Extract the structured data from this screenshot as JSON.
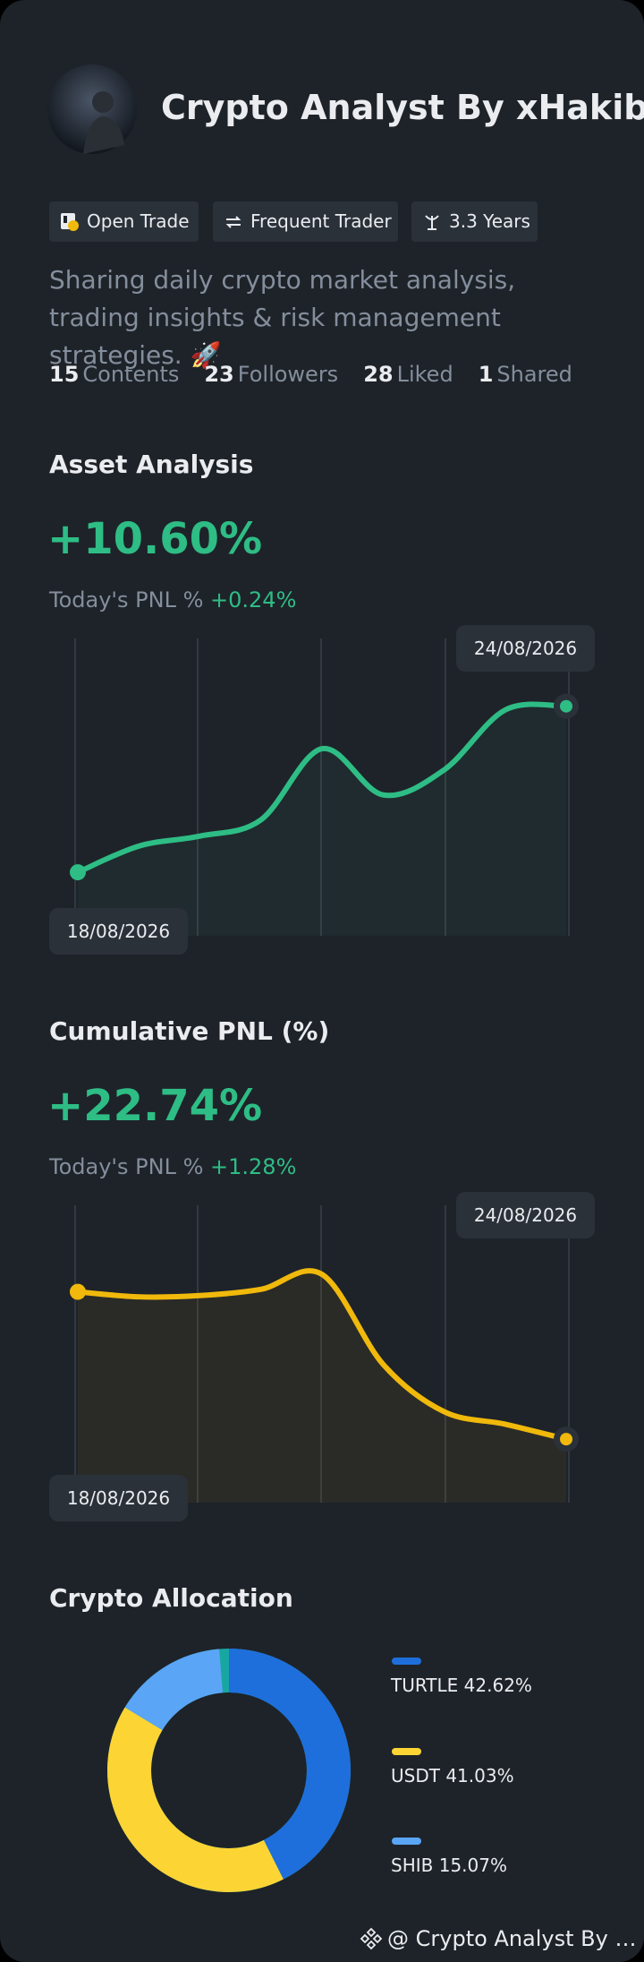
{
  "profile": {
    "name": "Crypto Analyst By xHakib",
    "badges": [
      "Open Trade",
      "Frequent Trader",
      "3.3 Years"
    ],
    "bio": "Sharing daily crypto market analysis, trading insights & risk management strategies. 🚀",
    "stats": [
      {
        "value": "15",
        "label": "Contents"
      },
      {
        "value": "23",
        "label": "Followers"
      },
      {
        "value": "28",
        "label": "Liked"
      },
      {
        "value": "1",
        "label": "Shared"
      }
    ]
  },
  "chart_data": [
    {
      "type": "line",
      "title": "Asset Analysis",
      "headline": "+10.60%",
      "today_label": "Today's PNL %",
      "today_value": "+0.24%",
      "start_label": "18/08/2026",
      "end_label": "24/08/2026",
      "color": "#2ebd85",
      "values": [
        0,
        2.1,
        2.9,
        4.2,
        9.9,
        6.2,
        8.2,
        13.0,
        13.3
      ],
      "ylim": [
        -2,
        15
      ]
    },
    {
      "type": "line",
      "title": "Cumulative PNL (%)",
      "headline": "+22.74%",
      "today_label": "Today's PNL %",
      "today_value": "+1.28%",
      "start_label": "18/08/2026",
      "end_label": "24/08/2026",
      "color": "#f0b90b",
      "values": [
        11.8,
        11.4,
        11.5,
        12.0,
        13.2,
        6.0,
        2.2,
        1.2,
        0
      ],
      "ylim": [
        -2,
        15
      ]
    },
    {
      "type": "pie",
      "title": "Crypto Allocation",
      "categories": [
        "TURTLE",
        "USDT",
        "SHIB"
      ],
      "values": [
        42.62,
        41.03,
        15.07
      ],
      "value_labels": [
        "42.62%",
        "41.03%",
        "15.07%"
      ],
      "colors": [
        "#1e6fdc",
        "#fcd535",
        "#5aa5f5"
      ]
    }
  ],
  "footer": "@ Crypto Analyst By xH..."
}
